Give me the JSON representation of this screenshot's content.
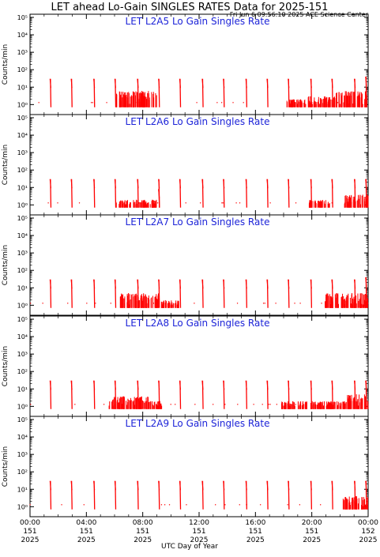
{
  "header": {
    "title": "LET ahead Lo-Gain SINGLES RATES Data for 2025-151",
    "timestamp": "Fri Jun  6 09:56:10 2025 ACE Science Center"
  },
  "colors": {
    "data": "#ff0000",
    "panel_title": "#1d24d8",
    "axes": "#000000",
    "background": "#ffffff"
  },
  "chart_data": {
    "type": "scatter",
    "xlabel": "UTC Day of Year",
    "ylabel": "Counts/min",
    "ylog": true,
    "ylim": [
      0.5,
      100000
    ],
    "y_ticks": [
      {
        "value": 1,
        "label": "10⁰"
      },
      {
        "value": 10,
        "label": "10¹"
      },
      {
        "value": 100,
        "label": "10²"
      },
      {
        "value": 1000,
        "label": "10³"
      },
      {
        "value": 10000,
        "label": "10⁴"
      },
      {
        "value": 100000,
        "label": "10⁵"
      }
    ],
    "xlim": [
      0,
      24
    ],
    "x_ticks": [
      {
        "value": 0,
        "time": "00:00",
        "day": "151",
        "year": "2025"
      },
      {
        "value": 4,
        "time": "04:00",
        "day": "151",
        "year": "2025"
      },
      {
        "value": 8,
        "time": "08:00",
        "day": "151",
        "year": "2025"
      },
      {
        "value": 12,
        "time": "12:00",
        "day": "151",
        "year": "2025"
      },
      {
        "value": 16,
        "time": "16:00",
        "day": "151",
        "year": "2025"
      },
      {
        "value": 20,
        "time": "20:00",
        "day": "151",
        "year": "2025"
      },
      {
        "value": 24,
        "time": "00:00",
        "day": "152",
        "year": "2025"
      }
    ],
    "panels": [
      {
        "title": "LET L2A5 Lo Gain Singles Rate",
        "spikes": [
          [
            1.45,
            30
          ],
          [
            2.95,
            30
          ],
          [
            4.55,
            30
          ],
          [
            6.05,
            30
          ],
          [
            7.65,
            30
          ],
          [
            9.15,
            30
          ],
          [
            10.65,
            30
          ],
          [
            12.25,
            30
          ],
          [
            13.75,
            30
          ],
          [
            15.35,
            30
          ],
          [
            16.85,
            30
          ],
          [
            18.35,
            30
          ],
          [
            19.95,
            30
          ],
          [
            21.45,
            30
          ],
          [
            23.05,
            30
          ],
          [
            23.85,
            40
          ]
        ],
        "bursts": [
          {
            "start": 6.1,
            "end": 9.0,
            "min": 1,
            "max": 6
          },
          {
            "start": 18.2,
            "end": 19.6,
            "min": 1,
            "max": 2
          },
          {
            "start": 19.7,
            "end": 21.6,
            "min": 1,
            "max": 3
          },
          {
            "start": 21.6,
            "end": 24.0,
            "min": 1,
            "max": 6
          }
        ]
      },
      {
        "title": "LET L2A6 Lo Gain Singles Rate",
        "spikes": [
          [
            1.45,
            30
          ],
          [
            2.95,
            30
          ],
          [
            4.55,
            30
          ],
          [
            6.05,
            30
          ],
          [
            7.65,
            30
          ],
          [
            9.15,
            30
          ],
          [
            10.65,
            30
          ],
          [
            12.25,
            30
          ],
          [
            13.75,
            30
          ],
          [
            15.35,
            30
          ],
          [
            16.85,
            30
          ],
          [
            18.35,
            30
          ],
          [
            19.95,
            30
          ],
          [
            21.45,
            30
          ],
          [
            23.05,
            30
          ],
          [
            23.85,
            30
          ],
          [
            9.15,
            8
          ]
        ],
        "bursts": [
          {
            "start": 6.1,
            "end": 9.0,
            "min": 1,
            "max": 2
          },
          {
            "start": 19.8,
            "end": 21.4,
            "min": 1,
            "max": 2
          },
          {
            "start": 22.3,
            "end": 24.0,
            "min": 1,
            "max": 4
          }
        ]
      },
      {
        "title": "LET L2A7 Lo Gain Singles Rate",
        "spikes": [
          [
            1.45,
            30
          ],
          [
            2.95,
            30
          ],
          [
            4.55,
            30
          ],
          [
            6.05,
            30
          ],
          [
            7.65,
            30
          ],
          [
            9.15,
            30
          ],
          [
            10.65,
            30
          ],
          [
            12.25,
            30
          ],
          [
            13.75,
            30
          ],
          [
            15.35,
            30
          ],
          [
            16.85,
            30
          ],
          [
            18.35,
            30
          ],
          [
            19.95,
            30
          ],
          [
            21.45,
            30
          ],
          [
            23.05,
            30
          ],
          [
            23.85,
            40
          ]
        ],
        "bursts": [
          {
            "start": 6.4,
            "end": 9.2,
            "min": 1,
            "max": 5
          },
          {
            "start": 9.3,
            "end": 10.6,
            "min": 1,
            "max": 2
          },
          {
            "start": 20.9,
            "end": 24.0,
            "min": 1,
            "max": 5
          }
        ]
      },
      {
        "title": "LET L2A8 Lo Gain Singles Rate",
        "spikes": [
          [
            1.45,
            30
          ],
          [
            2.95,
            30
          ],
          [
            4.55,
            30
          ],
          [
            6.05,
            30
          ],
          [
            7.65,
            30
          ],
          [
            9.15,
            30
          ],
          [
            10.65,
            30
          ],
          [
            12.25,
            30
          ],
          [
            13.75,
            30
          ],
          [
            15.35,
            30
          ],
          [
            16.85,
            30
          ],
          [
            18.35,
            30
          ],
          [
            19.95,
            30
          ],
          [
            21.45,
            30
          ],
          [
            23.05,
            30
          ],
          [
            23.85,
            30
          ]
        ],
        "bursts": [
          {
            "start": 5.6,
            "end": 8.4,
            "min": 1,
            "max": 4
          },
          {
            "start": 8.4,
            "end": 9.4,
            "min": 1,
            "max": 2
          },
          {
            "start": 17.8,
            "end": 19.7,
            "min": 1,
            "max": 2
          },
          {
            "start": 19.9,
            "end": 22.5,
            "min": 1,
            "max": 2
          },
          {
            "start": 22.5,
            "end": 24.0,
            "min": 1,
            "max": 5
          }
        ]
      },
      {
        "title": "LET L2A9 Lo Gain Singles Rate",
        "spikes": [
          [
            1.45,
            30
          ],
          [
            2.95,
            30
          ],
          [
            4.55,
            30
          ],
          [
            6.05,
            30
          ],
          [
            7.65,
            30
          ],
          [
            9.15,
            30
          ],
          [
            10.65,
            30
          ],
          [
            12.25,
            30
          ],
          [
            13.75,
            30
          ],
          [
            15.35,
            30
          ],
          [
            16.85,
            30
          ],
          [
            18.35,
            30
          ],
          [
            19.95,
            30
          ],
          [
            21.45,
            30
          ],
          [
            23.05,
            30
          ],
          [
            23.85,
            30
          ]
        ],
        "bursts": [
          {
            "start": 22.2,
            "end": 24.0,
            "min": 1,
            "max": 4
          }
        ]
      }
    ]
  }
}
